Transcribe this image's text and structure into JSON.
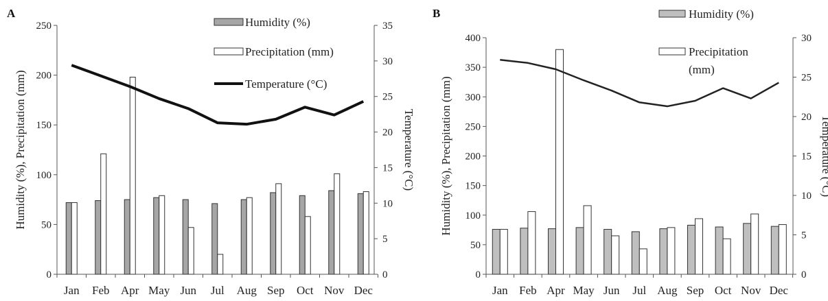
{
  "chart_data": [
    {
      "type": "bar",
      "panel_label": "A",
      "categories": [
        "Jan",
        "Feb",
        "Apr",
        "May",
        "Jun",
        "Jul",
        "Aug",
        "Sep",
        "Oct",
        "Nov",
        "Dec"
      ],
      "ylabel": "Humidity  (%), Precipitation  (mm)",
      "y2label": "Temperature  (°C)",
      "ylim": [
        0,
        250
      ],
      "yticks": [
        "0",
        "50",
        "100",
        "150",
        "200",
        "250"
      ],
      "y2lim": [
        0,
        35
      ],
      "y2ticks": [
        "0",
        "5",
        "10",
        "15",
        "20",
        "25",
        "30",
        "35"
      ],
      "legend_position": "top-center",
      "legend_lines": [
        [
          "Humidity (%)"
        ],
        [
          "Precipitation (mm)"
        ],
        [
          "Temperature (°C)"
        ]
      ],
      "grid": false,
      "series": [
        {
          "name": "Humidity (%)",
          "type": "bar",
          "color": "#a6a6a6",
          "values": [
            72,
            74,
            75,
            77,
            75,
            71,
            75,
            82,
            79,
            84,
            81
          ]
        },
        {
          "name": "Precipitation (mm)",
          "type": "bar",
          "color": "#ffffff",
          "values": [
            72,
            121,
            198,
            79,
            47,
            20,
            77,
            91,
            58,
            101,
            83
          ]
        },
        {
          "name": "Temperature (°C)",
          "type": "line",
          "axis": "right",
          "color": "#111111",
          "values": [
            29.4,
            27.9,
            26.4,
            24.7,
            23.3,
            21.3,
            21.1,
            21.8,
            23.5,
            22.4,
            24.3
          ]
        }
      ]
    },
    {
      "type": "bar",
      "panel_label": "B",
      "categories": [
        "Jan",
        "Feb",
        "Apr",
        "May",
        "Jun",
        "Jul",
        "Aug",
        "Sep",
        "Oct",
        "Nov",
        "Dec"
      ],
      "ylabel": "Humidity  (%), Precipitation  (mm)",
      "y2label": "Temperature  (°C)",
      "ylim": [
        0,
        400
      ],
      "yticks": [
        "0",
        "50",
        "100",
        "150",
        "200",
        "250",
        "300",
        "350",
        "400"
      ],
      "y2lim": [
        0,
        30
      ],
      "y2ticks": [
        "0",
        "5",
        "10",
        "15",
        "20",
        "25",
        "30"
      ],
      "legend_position": "top-right",
      "legend_lines": [
        [
          "Humidity (%)"
        ],
        [
          "Precipitation",
          "(mm)"
        ]
      ],
      "grid": false,
      "series": [
        {
          "name": "Humidity (%)",
          "type": "bar",
          "color": "#bfbfbf",
          "values": [
            76,
            78,
            77,
            79,
            76,
            72,
            77,
            83,
            80,
            86,
            81
          ]
        },
        {
          "name": "Precipitation (mm)",
          "type": "bar",
          "color": "#ffffff",
          "values": [
            76,
            106,
            380,
            116,
            65,
            43,
            79,
            94,
            60,
            102,
            84
          ]
        },
        {
          "name": "Temperature (°C)",
          "type": "line",
          "axis": "right",
          "color": "#222222",
          "values": [
            27.2,
            26.8,
            26.0,
            24.6,
            23.3,
            21.8,
            21.3,
            22.0,
            23.6,
            22.3,
            24.3
          ]
        }
      ]
    }
  ]
}
